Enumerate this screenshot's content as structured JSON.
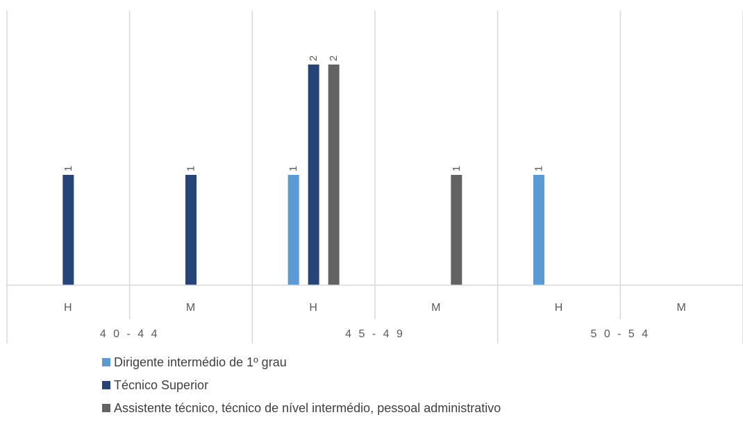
{
  "chart_data": {
    "type": "bar",
    "groups": [
      {
        "label": "40-44",
        "categories": [
          "H",
          "M"
        ]
      },
      {
        "label": "45-49",
        "categories": [
          "H",
          "M"
        ]
      },
      {
        "label": "50-54",
        "categories": [
          "H",
          "M"
        ]
      }
    ],
    "categories": [
      "H",
      "M",
      "H",
      "M",
      "H",
      "M"
    ],
    "series": [
      {
        "name": "Dirigente intermédio de 1º grau",
        "color": "#5B9BD5",
        "values": [
          null,
          null,
          1,
          null,
          1,
          null
        ]
      },
      {
        "name": "Técnico Superior",
        "color": "#264478",
        "values": [
          1,
          1,
          2,
          null,
          null,
          null
        ]
      },
      {
        "name": "Assistente técnico, técnico de nível intermédio, pessoal administrativo",
        "color": "#636363",
        "values": [
          null,
          null,
          2,
          1,
          null,
          null
        ]
      }
    ],
    "ylim": [
      0,
      2.5
    ],
    "legend_position": "bottom",
    "grid": true
  }
}
